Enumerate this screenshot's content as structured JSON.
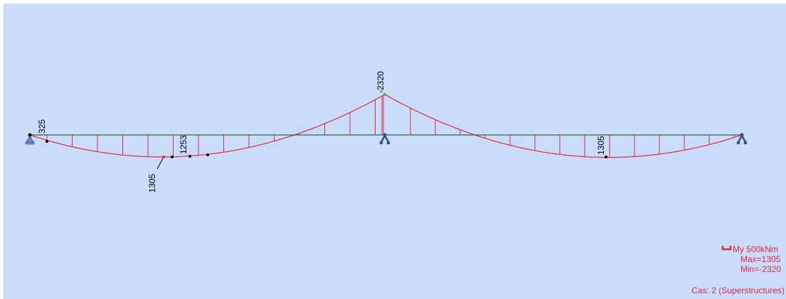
{
  "annotations": {
    "left_end": "325",
    "span1_max": "1305",
    "span1_near_max": "1253",
    "support_moment": "-2320",
    "span2_max": "1305"
  },
  "legend": {
    "quantity": "My  500kNm",
    "max": "Max=1305",
    "min": "Min=-2320",
    "case": "Cas: 2 (Superstructures)"
  }
}
